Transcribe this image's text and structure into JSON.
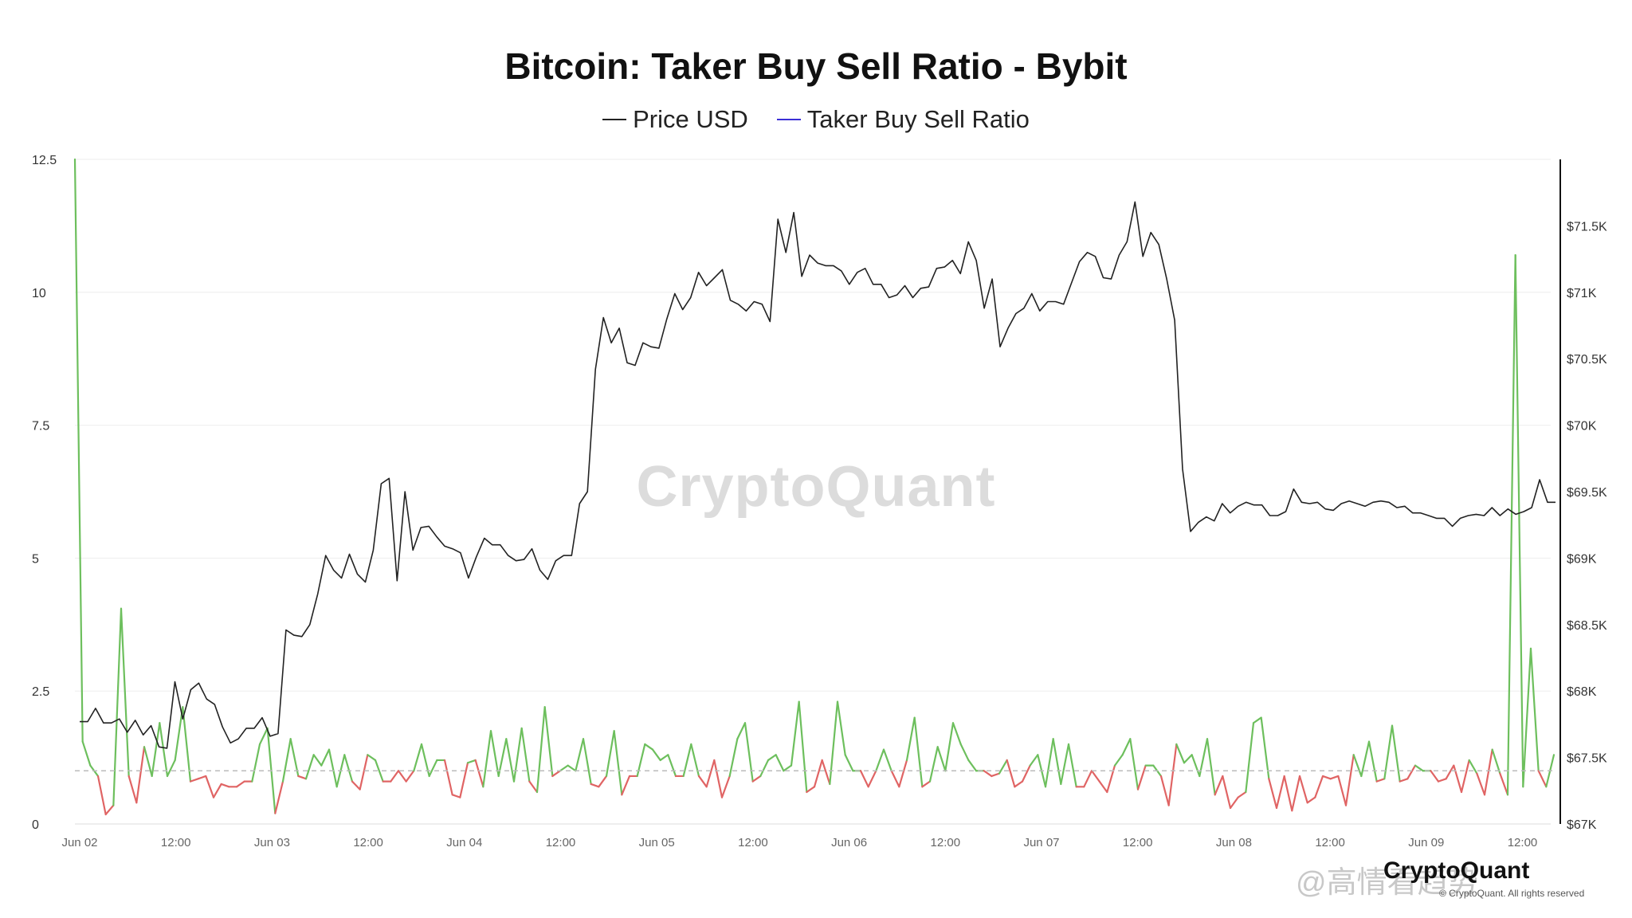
{
  "chart_data": {
    "type": "line",
    "title": "Bitcoin: Taker Buy Sell Ratio - Bybit",
    "legend": [
      {
        "label": "Price USD",
        "color": "#222222"
      },
      {
        "label": "Taker Buy Sell Ratio",
        "color": "#3b2fd6"
      }
    ],
    "x_ticks": [
      "Jun 02",
      "12:00",
      "Jun 03",
      "12:00",
      "Jun 04",
      "12:00",
      "Jun 05",
      "12:00",
      "Jun 06",
      "12:00",
      "Jun 07",
      "12:00",
      "Jun 08",
      "12:00",
      "Jun 09",
      "12:00"
    ],
    "y_left": {
      "ticks": [
        "12.5",
        "10",
        "7.5",
        "5",
        "2.5",
        "0"
      ],
      "range": [
        0,
        12.5
      ]
    },
    "y_right": {
      "ticks": [
        "$71.5K",
        "$71K",
        "$70.5K",
        "$70K",
        "$69.5K",
        "$69K",
        "$68.5K",
        "$68K",
        "$67.5K",
        "$67K"
      ],
      "range": [
        67000,
        72000
      ]
    },
    "reference_line": 1,
    "colors": {
      "above_one": "#6dbf5d",
      "below_one": "#e06464",
      "price": "#222222"
    },
    "series": [
      {
        "name": "Price USD",
        "values": [
          67770,
          67770,
          67870,
          67760,
          67760,
          67790,
          67690,
          67780,
          67670,
          67740,
          67580,
          67570,
          68070,
          67790,
          68010,
          68060,
          67940,
          67900,
          67730,
          67610,
          67640,
          67720,
          67720,
          67800,
          67660,
          67680,
          68460,
          68420,
          68410,
          68500,
          68730,
          69020,
          68910,
          68850,
          69030,
          68880,
          68820,
          69060,
          69560,
          69600,
          68830,
          69500,
          69060,
          69230,
          69240,
          69160,
          69090,
          69070,
          69040,
          68850,
          69010,
          69150,
          69100,
          69100,
          69020,
          68980,
          68990,
          69070,
          68910,
          68840,
          68980,
          69020,
          69020,
          69410,
          69500,
          70420,
          70810,
          70620,
          70730,
          70470,
          70450,
          70620,
          70590,
          70580,
          70800,
          70990,
          70870,
          70960,
          71150,
          71050,
          71110,
          71170,
          70940,
          70910,
          70860,
          70930,
          70910,
          70780,
          71550,
          71300,
          71600,
          71120,
          71280,
          71220,
          71200,
          71200,
          71160,
          71060,
          71150,
          71180,
          71060,
          71060,
          70960,
          70980,
          71050,
          70960,
          71030,
          71040,
          71180,
          71190,
          71240,
          71140,
          71380,
          71240,
          70880,
          71100,
          70590,
          70730,
          70840,
          70880,
          70990,
          70860,
          70930,
          70930,
          70910,
          71070,
          71230,
          71300,
          71270,
          71110,
          71100,
          71280,
          71380,
          71680,
          71270,
          71450,
          71360,
          71100,
          70790,
          69670,
          69200,
          69270,
          69310,
          69280,
          69410,
          69340,
          69390,
          69420,
          69400,
          69400,
          69320,
          69320,
          69350,
          69520,
          69420,
          69410,
          69420,
          69370,
          69360,
          69410,
          69430,
          69410,
          69390,
          69420,
          69430,
          69420,
          69380,
          69390,
          69340,
          69340,
          69320,
          69300,
          69300,
          69240,
          69300,
          69320,
          69330,
          69320,
          69380,
          69320,
          69370,
          69330,
          69350,
          69380,
          69590,
          69420,
          69420
        ]
      },
      {
        "name": "Taker Buy Sell Ratio",
        "values": [
          12.5,
          1.55,
          1.1,
          0.9,
          0.18,
          0.35,
          4.05,
          0.9,
          0.4,
          1.45,
          0.9,
          1.9,
          0.9,
          1.2,
          2.2,
          0.8,
          0.85,
          0.9,
          0.5,
          0.75,
          0.7,
          0.7,
          0.8,
          0.8,
          1.5,
          1.8,
          0.2,
          0.8,
          1.6,
          0.9,
          0.85,
          1.3,
          1.1,
          1.4,
          0.7,
          1.3,
          0.8,
          0.65,
          1.3,
          1.2,
          0.8,
          0.8,
          1.0,
          0.8,
          1.0,
          1.5,
          0.9,
          1.2,
          1.2,
          0.55,
          0.5,
          1.15,
          1.2,
          0.7,
          1.75,
          0.9,
          1.6,
          0.8,
          1.8,
          0.8,
          0.6,
          2.2,
          0.9,
          1.0,
          1.1,
          1.0,
          1.6,
          0.75,
          0.7,
          0.9,
          1.75,
          0.55,
          0.9,
          0.9,
          1.5,
          1.4,
          1.2,
          1.3,
          0.9,
          0.9,
          1.5,
          0.9,
          0.7,
          1.2,
          0.5,
          0.9,
          1.6,
          1.9,
          0.8,
          0.9,
          1.2,
          1.3,
          1.0,
          1.1,
          2.3,
          0.6,
          0.7,
          1.2,
          0.75,
          2.3,
          1.3,
          1.0,
          1.0,
          0.7,
          1.0,
          1.4,
          1.0,
          0.7,
          1.2,
          2.0,
          0.7,
          0.8,
          1.45,
          1.0,
          1.9,
          1.5,
          1.2,
          1.0,
          1.0,
          0.9,
          0.95,
          1.2,
          0.7,
          0.8,
          1.1,
          1.3,
          0.7,
          1.6,
          0.75,
          1.5,
          0.7,
          0.7,
          1.0,
          0.8,
          0.6,
          1.1,
          1.3,
          1.6,
          0.65,
          1.1,
          1.1,
          0.9,
          0.35,
          1.5,
          1.15,
          1.3,
          0.9,
          1.6,
          0.55,
          0.9,
          0.3,
          0.5,
          0.6,
          1.9,
          2.0,
          0.85,
          0.3,
          0.9,
          0.25,
          0.9,
          0.4,
          0.5,
          0.9,
          0.85,
          0.9,
          0.35,
          1.3,
          0.9,
          1.55,
          0.8,
          0.85,
          1.85,
          0.8,
          0.85,
          1.1,
          1.0,
          1.0,
          0.8,
          0.85,
          1.1,
          0.6,
          1.2,
          0.95,
          0.55,
          1.4,
          0.95,
          0.55,
          10.7,
          0.7,
          3.3,
          1.0,
          0.7,
          1.3
        ]
      }
    ]
  },
  "watermark": "CryptoQuant",
  "footer": {
    "logo_text": "CryptoQuant",
    "copyright": "© CryptoQuant. All rights reserved",
    "weibo_handle": "@高情看趋势"
  }
}
